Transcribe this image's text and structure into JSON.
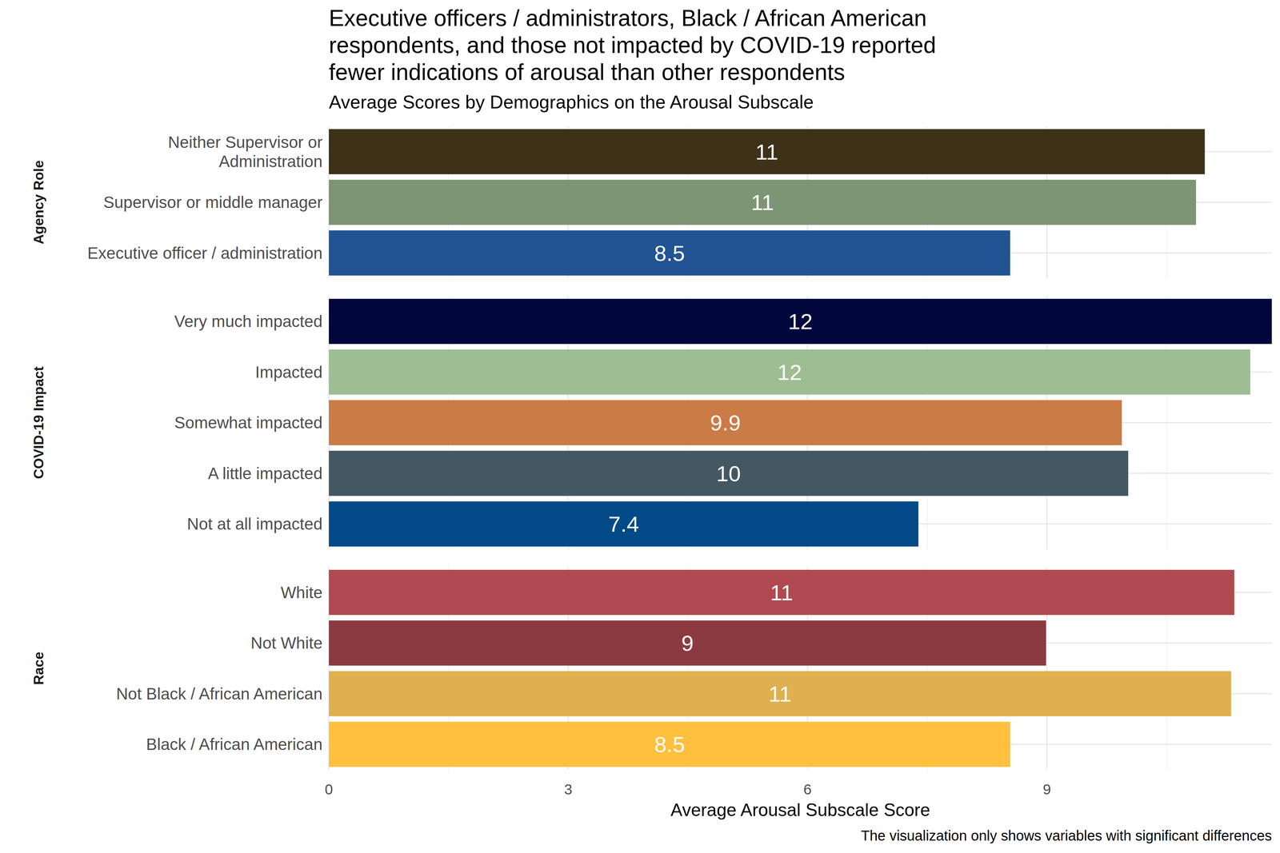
{
  "chart_data": {
    "type": "bar",
    "orientation": "horizontal",
    "title": "Executive officers / administrators, Black / African American\nrespondents, and those not impacted by COVID-19 reported\nfewer indications of arousal than other respondents",
    "subtitle": "Average Scores by Demographics on the Arousal Subscale",
    "x_label": "Average Arousal Subscale Score",
    "caption": "The visualization only shows variables with significant differences",
    "xlim": [
      0,
      11.82
    ],
    "xticks": [
      0,
      3,
      6,
      9
    ],
    "grid": true,
    "data_labels": true,
    "panels": [
      {
        "label": "Agency Role",
        "categories": [
          "Neither Supervisor or\nAdministration",
          "Supervisor or middle manager",
          "Executive officer / administration"
        ],
        "values": [
          10.98,
          10.87,
          8.54
        ],
        "value_labels": [
          "11",
          "11",
          "8.5"
        ],
        "colors": [
          "#3d3118",
          "#7e9575",
          "#225493"
        ]
      },
      {
        "label": "COVID-19 Impact",
        "categories": [
          "Very much impacted",
          "Impacted",
          "Somewhat impacted",
          "A little impacted",
          "Not at all impacted"
        ],
        "values": [
          11.82,
          11.55,
          9.94,
          10.02,
          7.39
        ],
        "value_labels": [
          "12",
          "12",
          "9.9",
          "10",
          "7.4"
        ],
        "colors": [
          "#01063c",
          "#9dbd92",
          "#cb7b45",
          "#435862",
          "#024a87"
        ]
      },
      {
        "label": "Race",
        "categories": [
          "White",
          "Not White",
          "Not Black / African American",
          "Black / African American"
        ],
        "values": [
          11.35,
          8.99,
          11.31,
          8.54
        ],
        "value_labels": [
          "11",
          "9",
          "11",
          "8.5"
        ],
        "colors": [
          "#b04950",
          "#8b3a40",
          "#dfb04f",
          "#fec03d"
        ]
      }
    ]
  }
}
